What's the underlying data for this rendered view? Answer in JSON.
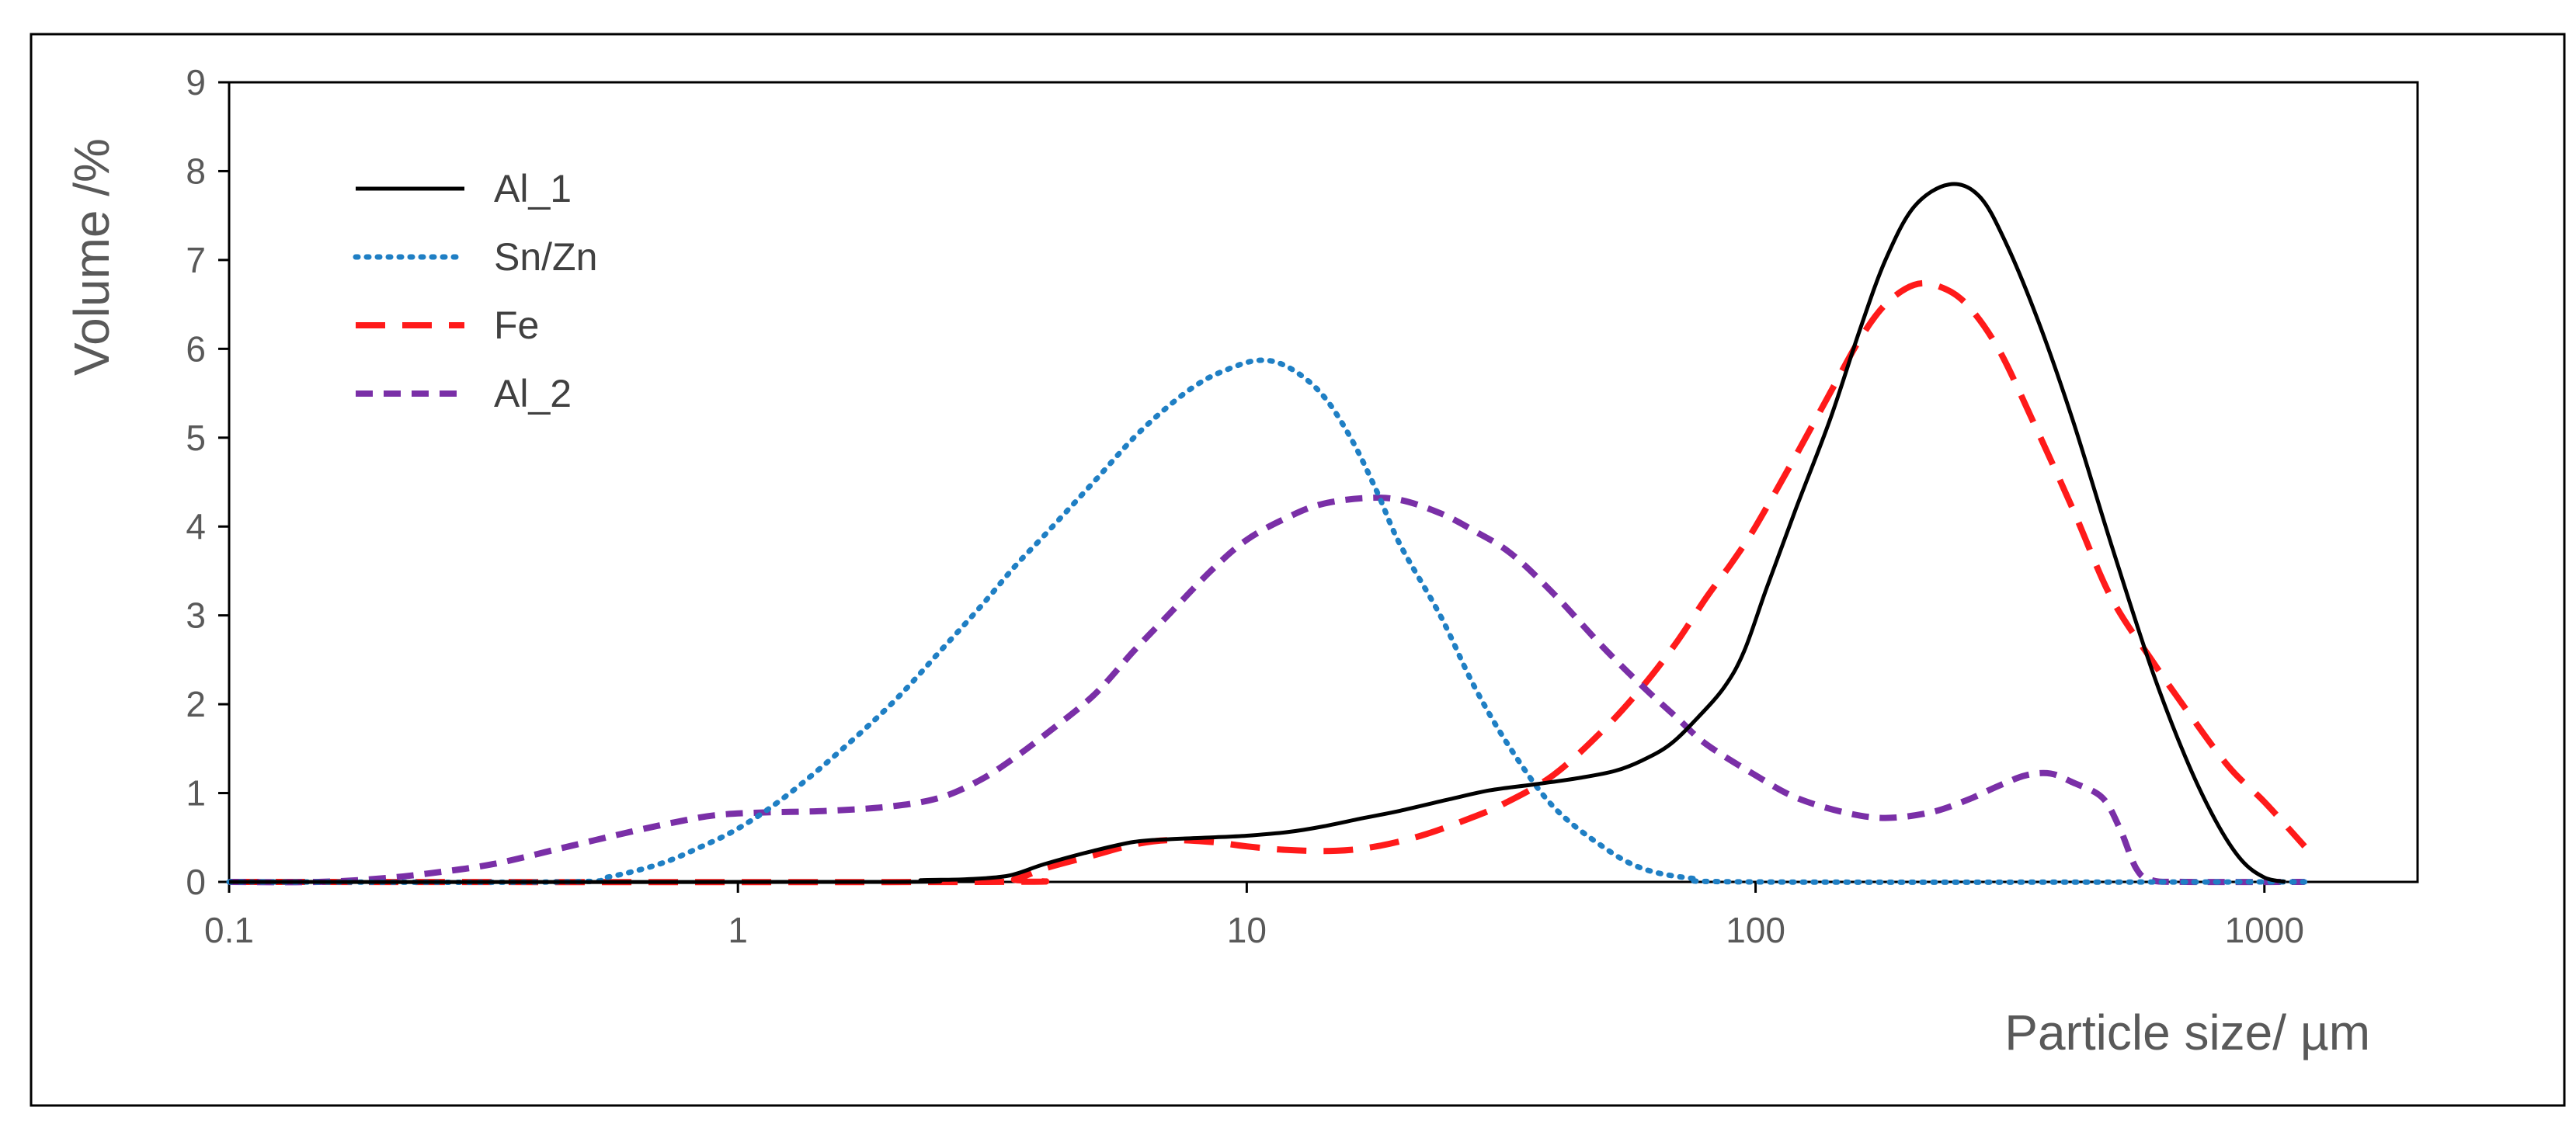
{
  "chart_data": {
    "type": "line",
    "title": "",
    "xlabel": "Particle size/ µm",
    "ylabel": "Volume /%",
    "xscale": "log",
    "xlim": [
      0.1,
      2000
    ],
    "ylim": [
      0,
      9
    ],
    "x_tick_labels": [
      "0.1",
      "1",
      "10",
      "100",
      "1000"
    ],
    "y_tick_labels": [
      "0",
      "1",
      "2",
      "3",
      "4",
      "5",
      "6",
      "7",
      "8",
      "9"
    ],
    "grid": false,
    "legend_position": "top-left",
    "series": [
      {
        "name": "Al_1",
        "color": "#000000",
        "style": "solid",
        "points": [
          [
            0.1,
            0
          ],
          [
            1.9,
            0
          ],
          [
            2.3,
            0.02
          ],
          [
            2.8,
            0.03
          ],
          [
            3.4,
            0.07
          ],
          [
            4.0,
            0.2
          ],
          [
            5.0,
            0.35
          ],
          [
            6.0,
            0.45
          ],
          [
            7.0,
            0.48
          ],
          [
            8.5,
            0.5
          ],
          [
            10,
            0.52
          ],
          [
            12,
            0.56
          ],
          [
            14,
            0.62
          ],
          [
            17,
            0.72
          ],
          [
            20,
            0.8
          ],
          [
            25,
            0.93
          ],
          [
            30,
            1.03
          ],
          [
            37,
            1.1
          ],
          [
            45,
            1.17
          ],
          [
            53,
            1.25
          ],
          [
            60,
            1.37
          ],
          [
            68,
            1.55
          ],
          [
            77,
            1.85
          ],
          [
            87,
            2.2
          ],
          [
            95,
            2.6
          ],
          [
            105,
            3.3
          ],
          [
            120,
            4.2
          ],
          [
            140,
            5.2
          ],
          [
            160,
            6.2
          ],
          [
            180,
            7.0
          ],
          [
            205,
            7.6
          ],
          [
            240,
            7.85
          ],
          [
            275,
            7.72
          ],
          [
            310,
            7.2
          ],
          [
            360,
            6.3
          ],
          [
            420,
            5.2
          ],
          [
            500,
            3.8
          ],
          [
            600,
            2.4
          ],
          [
            700,
            1.4
          ],
          [
            800,
            0.7
          ],
          [
            900,
            0.25
          ],
          [
            1000,
            0.05
          ],
          [
            1100,
            0
          ]
        ]
      },
      {
        "name": "Sn/Zn",
        "color": "#1f7fc4",
        "style": "dotted",
        "points": [
          [
            0.1,
            0
          ],
          [
            0.45,
            0
          ],
          [
            0.55,
            0.05
          ],
          [
            0.7,
            0.2
          ],
          [
            0.85,
            0.4
          ],
          [
            1.0,
            0.6
          ],
          [
            1.2,
            0.9
          ],
          [
            1.5,
            1.35
          ],
          [
            2.0,
            2.0
          ],
          [
            2.5,
            2.6
          ],
          [
            3.0,
            3.1
          ],
          [
            3.5,
            3.55
          ],
          [
            4.0,
            3.9
          ],
          [
            5.0,
            4.5
          ],
          [
            6.0,
            5.0
          ],
          [
            7.0,
            5.35
          ],
          [
            8.0,
            5.6
          ],
          [
            9.0,
            5.75
          ],
          [
            10.5,
            5.87
          ],
          [
            12,
            5.8
          ],
          [
            14,
            5.5
          ],
          [
            16,
            5.0
          ],
          [
            18,
            4.4
          ],
          [
            20,
            3.8
          ],
          [
            24,
            3.0
          ],
          [
            28,
            2.2
          ],
          [
            33,
            1.5
          ],
          [
            40,
            0.85
          ],
          [
            50,
            0.4
          ],
          [
            60,
            0.15
          ],
          [
            75,
            0.04
          ],
          [
            100,
            0
          ],
          [
            1200,
            0
          ]
        ]
      },
      {
        "name": "Fe",
        "color": "#ff1a1a",
        "style": "dashed",
        "points": [
          [
            0.1,
            0
          ],
          [
            3.0,
            0
          ],
          [
            3.5,
            0.03
          ],
          [
            4.0,
            0.15
          ],
          [
            5.0,
            0.3
          ],
          [
            6.0,
            0.42
          ],
          [
            7.0,
            0.47
          ],
          [
            8.5,
            0.45
          ],
          [
            10,
            0.4
          ],
          [
            12,
            0.36
          ],
          [
            15,
            0.35
          ],
          [
            18,
            0.4
          ],
          [
            22,
            0.52
          ],
          [
            27,
            0.7
          ],
          [
            32,
            0.88
          ],
          [
            40,
            1.2
          ],
          [
            50,
            1.7
          ],
          [
            60,
            2.2
          ],
          [
            70,
            2.7
          ],
          [
            80,
            3.2
          ],
          [
            90,
            3.6
          ],
          [
            100,
            4.0
          ],
          [
            120,
            4.8
          ],
          [
            140,
            5.5
          ],
          [
            160,
            6.1
          ],
          [
            180,
            6.5
          ],
          [
            205,
            6.72
          ],
          [
            230,
            6.7
          ],
          [
            260,
            6.5
          ],
          [
            300,
            6.0
          ],
          [
            350,
            5.2
          ],
          [
            420,
            4.2
          ],
          [
            500,
            3.2
          ],
          [
            600,
            2.5
          ],
          [
            700,
            1.95
          ],
          [
            850,
            1.3
          ],
          [
            1000,
            0.9
          ],
          [
            1200,
            0.4
          ]
        ]
      },
      {
        "name": " Al_2",
        "color": "#7a2fa7",
        "style": "dashed",
        "points": [
          [
            0.1,
            0
          ],
          [
            0.15,
            0
          ],
          [
            0.2,
            0.04
          ],
          [
            0.25,
            0.1
          ],
          [
            0.33,
            0.2
          ],
          [
            0.45,
            0.38
          ],
          [
            0.6,
            0.55
          ],
          [
            0.75,
            0.67
          ],
          [
            0.9,
            0.75
          ],
          [
            1.1,
            0.78
          ],
          [
            1.5,
            0.8
          ],
          [
            2.0,
            0.85
          ],
          [
            2.5,
            0.95
          ],
          [
            3.0,
            1.15
          ],
          [
            3.5,
            1.4
          ],
          [
            4.0,
            1.65
          ],
          [
            5.0,
            2.1
          ],
          [
            6.0,
            2.6
          ],
          [
            7.0,
            3.0
          ],
          [
            8.5,
            3.5
          ],
          [
            10,
            3.85
          ],
          [
            12,
            4.1
          ],
          [
            14,
            4.25
          ],
          [
            17,
            4.32
          ],
          [
            20,
            4.3
          ],
          [
            24,
            4.15
          ],
          [
            28,
            3.95
          ],
          [
            33,
            3.7
          ],
          [
            40,
            3.25
          ],
          [
            50,
            2.65
          ],
          [
            60,
            2.2
          ],
          [
            70,
            1.85
          ],
          [
            80,
            1.55
          ],
          [
            100,
            1.2
          ],
          [
            120,
            0.95
          ],
          [
            150,
            0.78
          ],
          [
            180,
            0.72
          ],
          [
            220,
            0.78
          ],
          [
            260,
            0.92
          ],
          [
            300,
            1.08
          ],
          [
            340,
            1.2
          ],
          [
            380,
            1.22
          ],
          [
            420,
            1.12
          ],
          [
            480,
            0.95
          ],
          [
            520,
            0.6
          ],
          [
            560,
            0.15
          ],
          [
            600,
            0.02
          ],
          [
            700,
            0
          ],
          [
            1200,
            0
          ]
        ]
      }
    ]
  }
}
